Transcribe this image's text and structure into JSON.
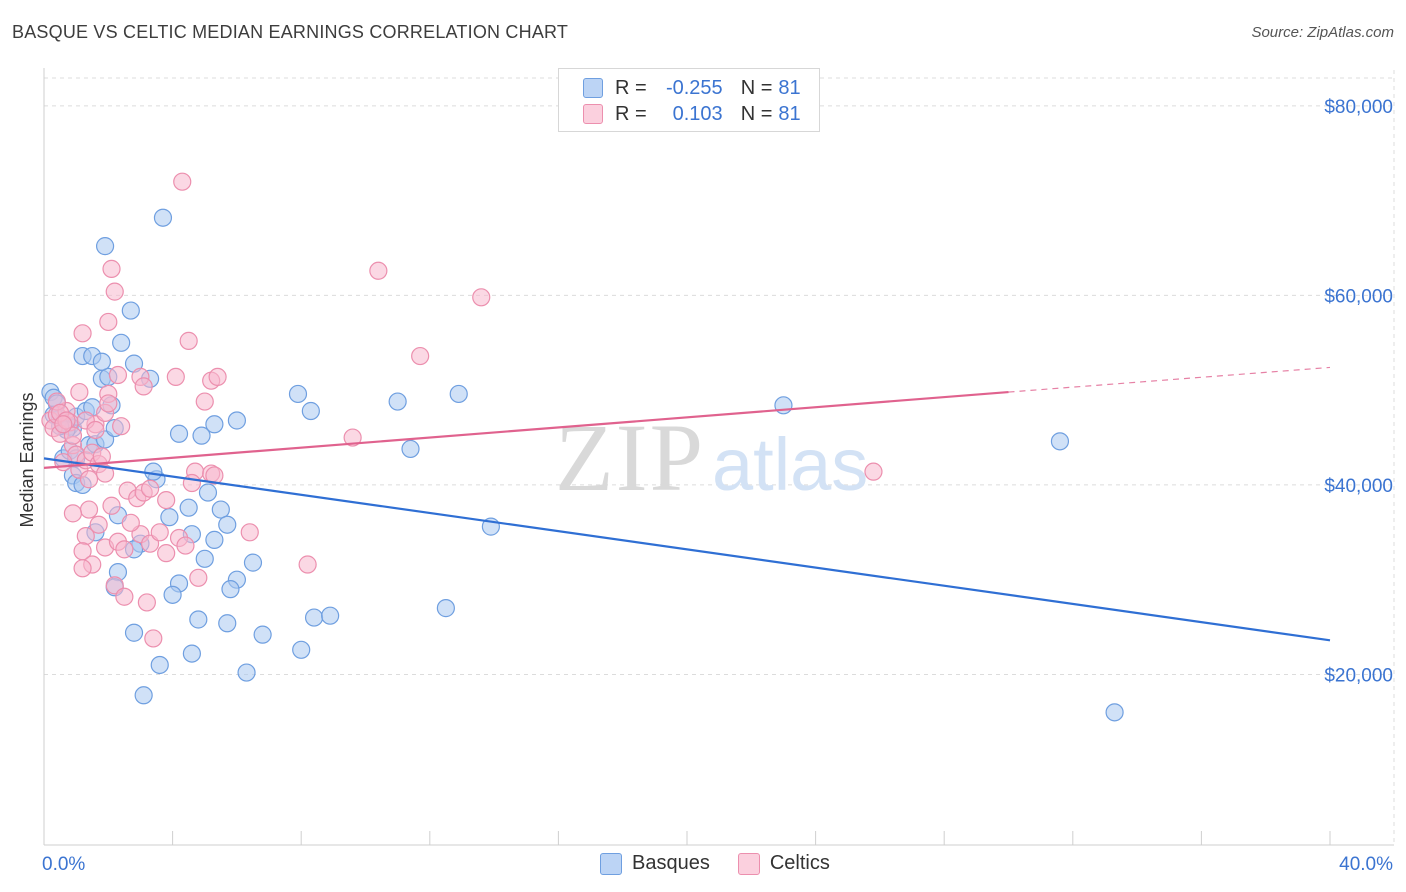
{
  "title": "BASQUE VS CELTIC MEDIAN EARNINGS CORRELATION CHART",
  "source": "Source: ZipAtlas.com",
  "legend": {
    "rows": [
      {
        "r_label": "R =",
        "r_value": "-0.255",
        "n_label": "N =",
        "n_value": "81"
      },
      {
        "r_label": "R =",
        "r_value": "0.103",
        "n_label": "N =",
        "n_value": "81"
      }
    ]
  },
  "bottom_legend": [
    "Basques",
    "Celtics"
  ],
  "colors": {
    "basques_fill": "#a9c8f0",
    "basques_stroke": "#6f9fe0",
    "basques_line": "#2f6fd4",
    "celtics_fill": "#f7b8cd",
    "celtics_stroke": "#ec8fae",
    "celtics_line": "#e0628e",
    "tick_label": "#3b74d1",
    "grid": "#dcdcdc"
  },
  "chart_data": {
    "type": "scatter",
    "title": "BASQUE VS CELTIC MEDIAN EARNINGS CORRELATION CHART",
    "xlabel": "",
    "ylabel": "Median Earnings",
    "xlim": [
      0,
      40
    ],
    "ylim": [
      2000,
      84000
    ],
    "x_tick_labels": [
      {
        "value": 0,
        "label": "0.0%"
      },
      {
        "value": 40,
        "label": "40.0%"
      }
    ],
    "y_tick_labels": [
      {
        "value": 20000,
        "label": "$20,000"
      },
      {
        "value": 40000,
        "label": "$40,000"
      },
      {
        "value": 60000,
        "label": "$60,000"
      },
      {
        "value": 80000,
        "label": "$80,000"
      }
    ],
    "watermark": {
      "a": "ZIP",
      "b": "atlas"
    },
    "series": [
      {
        "name": "Basques",
        "r": -0.255,
        "n": 81,
        "trend": {
          "x": [
            0,
            40
          ],
          "y": [
            42800,
            23600
          ]
        },
        "points": [
          [
            0.2,
            49800
          ],
          [
            0.3,
            49200
          ],
          [
            0.4,
            48600
          ],
          [
            0.5,
            47000
          ],
          [
            0.6,
            46600
          ],
          [
            0.8,
            46200
          ],
          [
            0.9,
            46000
          ],
          [
            1.0,
            47200
          ],
          [
            0.7,
            45800
          ],
          [
            0.6,
            42800
          ],
          [
            0.9,
            41000
          ],
          [
            1.0,
            40200
          ],
          [
            1.2,
            40000
          ],
          [
            1.4,
            44200
          ],
          [
            1.6,
            44300
          ],
          [
            1.9,
            44800
          ],
          [
            1.3,
            47800
          ],
          [
            1.5,
            48200
          ],
          [
            2.1,
            48400
          ],
          [
            2.2,
            46000
          ],
          [
            1.8,
            51200
          ],
          [
            2.0,
            51400
          ],
          [
            1.2,
            53600
          ],
          [
            1.5,
            53600
          ],
          [
            1.8,
            53000
          ],
          [
            2.4,
            55000
          ],
          [
            2.7,
            58400
          ],
          [
            1.9,
            65200
          ],
          [
            3.7,
            68200
          ],
          [
            2.8,
            52800
          ],
          [
            3.3,
            51200
          ],
          [
            3.5,
            40600
          ],
          [
            3.4,
            41400
          ],
          [
            2.3,
            36800
          ],
          [
            3.0,
            33800
          ],
          [
            2.8,
            33200
          ],
          [
            3.9,
            36600
          ],
          [
            4.5,
            37600
          ],
          [
            5.1,
            39200
          ],
          [
            5.3,
            34200
          ],
          [
            5.0,
            32200
          ],
          [
            5.5,
            37400
          ],
          [
            5.7,
            35800
          ],
          [
            6.0,
            30000
          ],
          [
            5.8,
            29000
          ],
          [
            4.6,
            34800
          ],
          [
            4.2,
            29600
          ],
          [
            4.0,
            28400
          ],
          [
            2.3,
            30800
          ],
          [
            2.2,
            29200
          ],
          [
            2.8,
            24400
          ],
          [
            3.6,
            21000
          ],
          [
            3.1,
            17800
          ],
          [
            4.6,
            22200
          ],
          [
            4.8,
            25800
          ],
          [
            5.7,
            25400
          ],
          [
            6.3,
            20200
          ],
          [
            6.5,
            31800
          ],
          [
            6.8,
            24200
          ],
          [
            8.0,
            22600
          ],
          [
            8.4,
            26000
          ],
          [
            8.9,
            26200
          ],
          [
            4.2,
            45400
          ],
          [
            4.9,
            45200
          ],
          [
            5.3,
            46400
          ],
          [
            6.0,
            46800
          ],
          [
            7.9,
            49600
          ],
          [
            8.3,
            47800
          ],
          [
            11.0,
            48800
          ],
          [
            11.4,
            43800
          ],
          [
            12.9,
            49600
          ],
          [
            13.9,
            35600
          ],
          [
            12.5,
            27000
          ],
          [
            23.0,
            48400
          ],
          [
            31.6,
            44600
          ],
          [
            33.3,
            16000
          ],
          [
            0.3,
            47400
          ],
          [
            0.5,
            46200
          ],
          [
            0.8,
            43600
          ],
          [
            1.0,
            42800
          ],
          [
            1.6,
            35000
          ]
        ]
      },
      {
        "name": "Celtics",
        "r": 0.103,
        "n": 81,
        "trend": {
          "x": [
            0,
            30.0
          ],
          "y": [
            41800,
            49800
          ]
        },
        "trend_dashed": {
          "x": [
            30.0,
            40
          ],
          "y": [
            49800,
            52400
          ]
        },
        "points": [
          [
            0.2,
            46800
          ],
          [
            0.3,
            46000
          ],
          [
            0.4,
            47400
          ],
          [
            0.5,
            45400
          ],
          [
            0.7,
            47800
          ],
          [
            0.8,
            46600
          ],
          [
            0.9,
            44200
          ],
          [
            1.0,
            43200
          ],
          [
            0.6,
            42400
          ],
          [
            1.1,
            41600
          ],
          [
            1.3,
            42600
          ],
          [
            1.5,
            43400
          ],
          [
            1.7,
            42200
          ],
          [
            1.9,
            41200
          ],
          [
            1.1,
            49800
          ],
          [
            1.6,
            46400
          ],
          [
            1.9,
            47600
          ],
          [
            2.0,
            49600
          ],
          [
            2.3,
            51600
          ],
          [
            1.2,
            56000
          ],
          [
            2.0,
            57200
          ],
          [
            2.1,
            62800
          ],
          [
            2.2,
            60400
          ],
          [
            3.0,
            51400
          ],
          [
            3.1,
            50400
          ],
          [
            4.1,
            51400
          ],
          [
            4.5,
            55200
          ],
          [
            5.2,
            51000
          ],
          [
            5.4,
            51400
          ],
          [
            4.3,
            72000
          ],
          [
            5.0,
            48800
          ],
          [
            4.7,
            41400
          ],
          [
            4.6,
            40200
          ],
          [
            5.2,
            41200
          ],
          [
            5.3,
            41000
          ],
          [
            2.6,
            39400
          ],
          [
            2.9,
            38600
          ],
          [
            3.1,
            39200
          ],
          [
            3.3,
            39600
          ],
          [
            3.8,
            38400
          ],
          [
            2.1,
            37800
          ],
          [
            1.4,
            37400
          ],
          [
            0.9,
            37000
          ],
          [
            1.3,
            34600
          ],
          [
            1.9,
            33400
          ],
          [
            2.3,
            34000
          ],
          [
            2.5,
            33200
          ],
          [
            3.0,
            34800
          ],
          [
            3.3,
            33800
          ],
          [
            3.8,
            32800
          ],
          [
            4.2,
            34400
          ],
          [
            4.4,
            33600
          ],
          [
            1.2,
            33000
          ],
          [
            1.5,
            31600
          ],
          [
            1.2,
            31200
          ],
          [
            2.2,
            29400
          ],
          [
            2.5,
            28200
          ],
          [
            3.2,
            27600
          ],
          [
            3.4,
            23800
          ],
          [
            4.8,
            30200
          ],
          [
            6.4,
            35000
          ],
          [
            8.2,
            31600
          ],
          [
            9.6,
            45000
          ],
          [
            10.4,
            62600
          ],
          [
            11.7,
            53600
          ],
          [
            13.6,
            59800
          ],
          [
            25.8,
            41400
          ],
          [
            0.4,
            48800
          ],
          [
            0.5,
            47600
          ],
          [
            0.7,
            46800
          ],
          [
            0.9,
            45200
          ],
          [
            1.3,
            46800
          ],
          [
            1.6,
            45800
          ],
          [
            1.8,
            43000
          ],
          [
            2.0,
            48600
          ],
          [
            2.4,
            46200
          ],
          [
            0.6,
            46400
          ],
          [
            1.4,
            40600
          ],
          [
            2.7,
            36000
          ],
          [
            1.7,
            35800
          ],
          [
            3.6,
            35000
          ]
        ]
      }
    ]
  }
}
